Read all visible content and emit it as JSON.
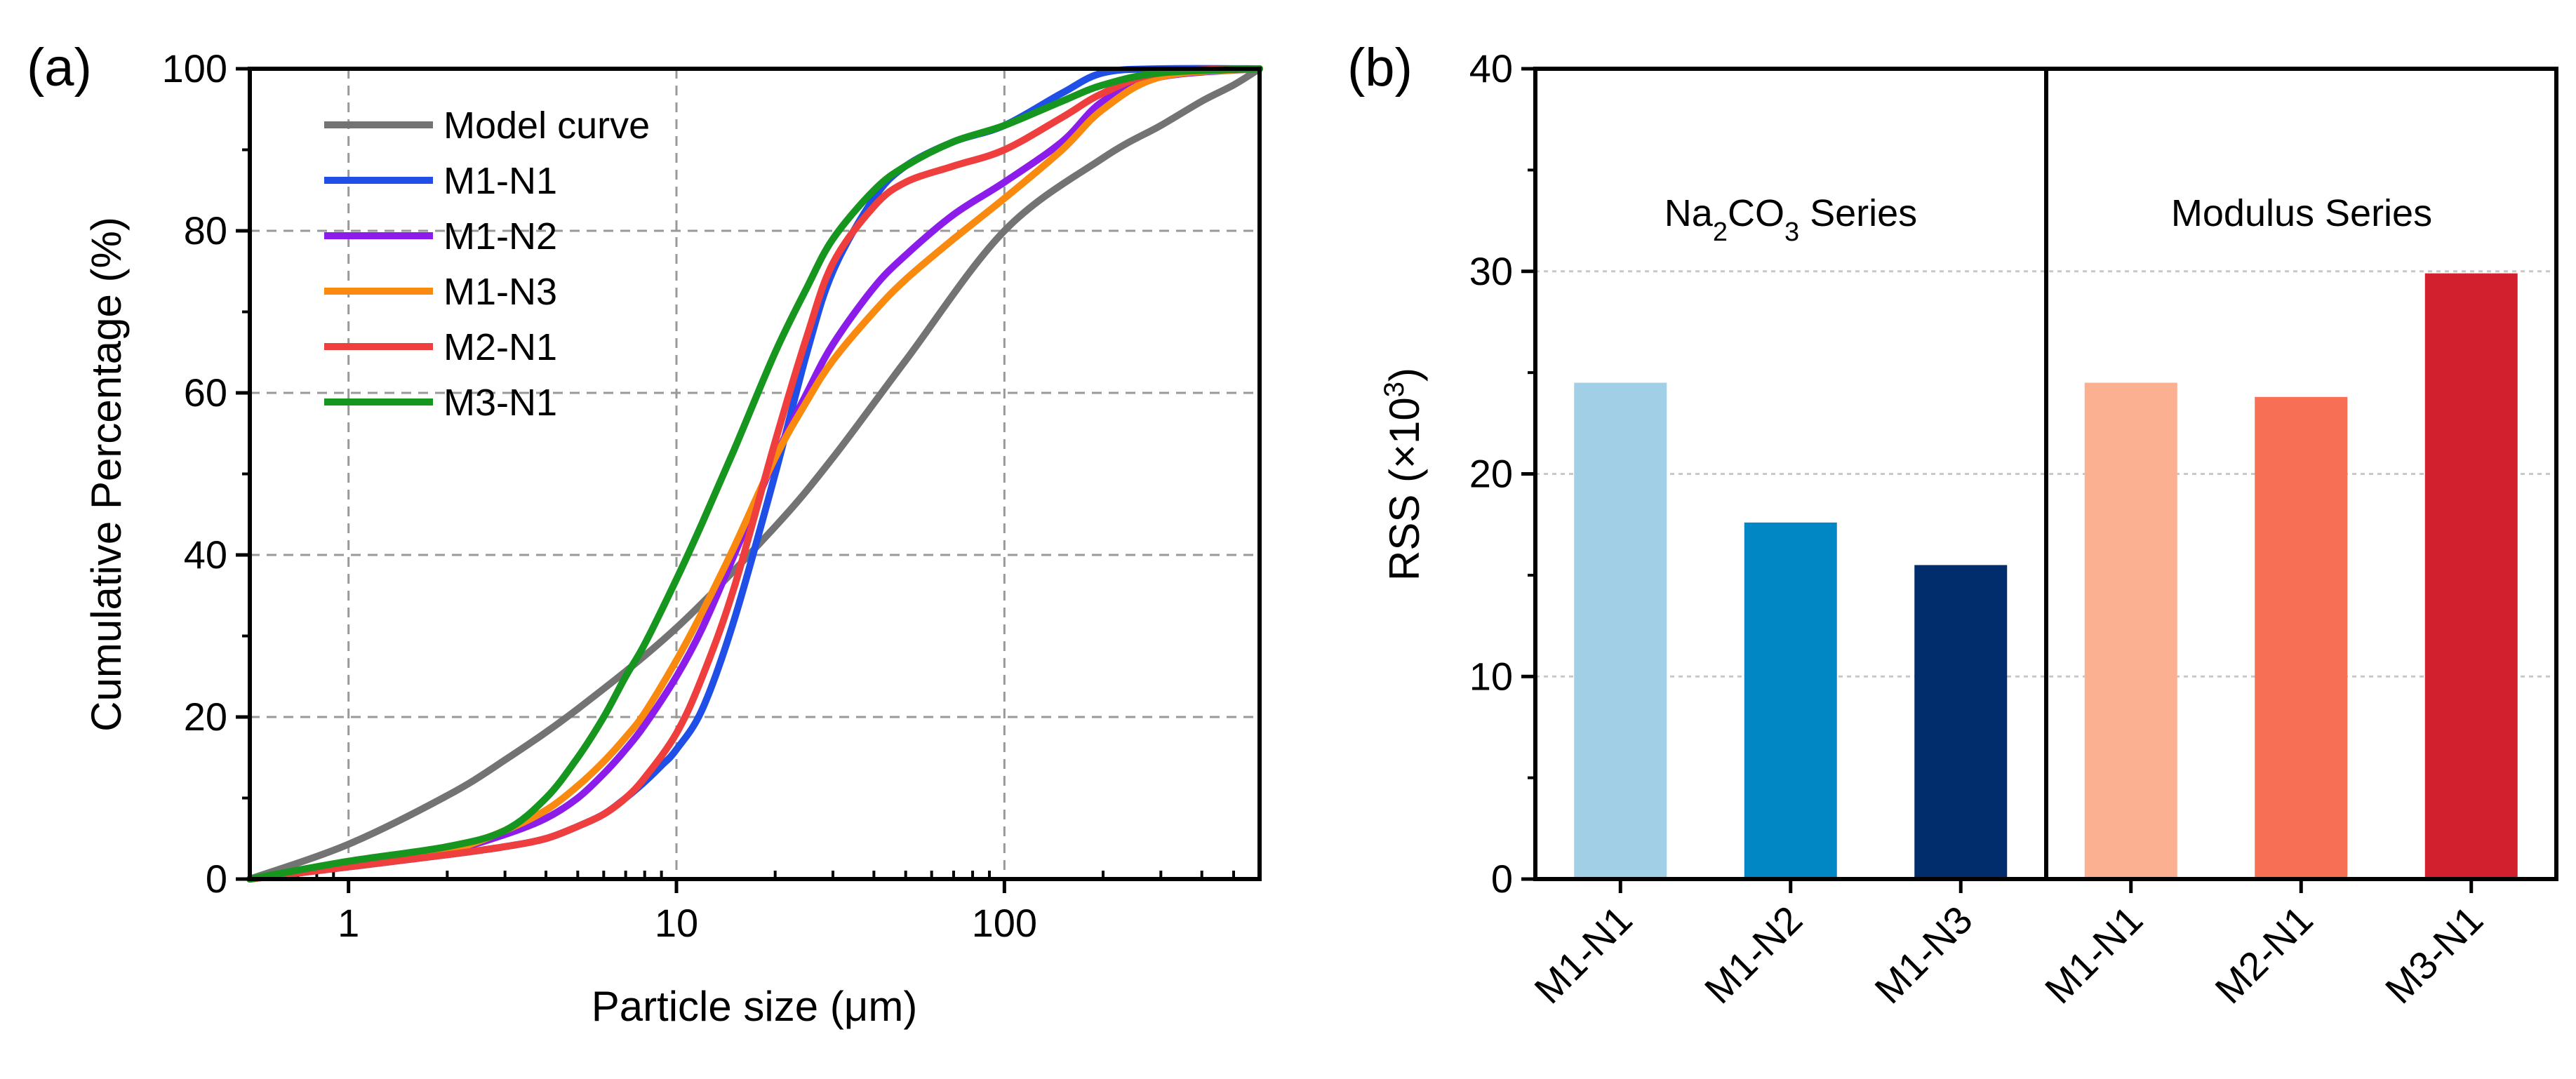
{
  "chart_data": [
    {
      "panel": "(a)",
      "type": "line",
      "xscale": "log",
      "xlabel": "Particle size (μm)",
      "ylabel": "Cumulative Percentage (%)",
      "xlim": [
        0.5,
        600
      ],
      "ylim": [
        0,
        100
      ],
      "xticks": [
        1,
        10,
        100
      ],
      "yticks": [
        0,
        20,
        40,
        60,
        80,
        100
      ],
      "grid": true,
      "legend": "top-left",
      "series": [
        {
          "name": "Model curve",
          "color": "#737373",
          "x": [
            0.5,
            1,
            2,
            3,
            5,
            10,
            20,
            30,
            50,
            100,
            200,
            300,
            400,
            500,
            600
          ],
          "y": [
            0,
            4.3,
            10.3,
            14.7,
            21,
            31,
            43.5,
            52,
            64,
            80,
            89,
            93,
            96,
            98,
            100
          ]
        },
        {
          "name": "M1-N1",
          "color": "#1f4fe6",
          "x": [
            0.5,
            1,
            2,
            3,
            4,
            5,
            6,
            7,
            8,
            9,
            10,
            12,
            15,
            20,
            25,
            30,
            40,
            50,
            70,
            100,
            150,
            200,
            300,
            600
          ],
          "y": [
            0,
            1.5,
            3,
            4,
            5,
            6.5,
            8,
            10,
            12,
            14,
            16,
            21,
            32,
            50,
            65,
            75,
            84,
            88,
            91,
            93,
            97,
            99.5,
            100,
            100
          ]
        },
        {
          "name": "M1-N2",
          "color": "#8b1cea",
          "x": [
            0.5,
            1,
            2,
            3,
            4,
            5,
            6,
            7,
            8,
            10,
            12,
            15,
            20,
            25,
            30,
            40,
            50,
            70,
            100,
            150,
            200,
            300,
            600
          ],
          "y": [
            0,
            1.7,
            3.5,
            5.5,
            7.5,
            10,
            13,
            16,
            19,
            25,
            31,
            40,
            52,
            60,
            66,
            73,
            77,
            82,
            86,
            91,
            96,
            99,
            100
          ]
        },
        {
          "name": "M1-N3",
          "color": "#f98a0f",
          "x": [
            0.5,
            1,
            2,
            3,
            4,
            5,
            6,
            7,
            8,
            10,
            12,
            15,
            20,
            25,
            30,
            40,
            50,
            70,
            100,
            150,
            200,
            300,
            600
          ],
          "y": [
            0,
            1.7,
            3.5,
            6,
            8.5,
            11.5,
            14.5,
            17.5,
            20.5,
            27,
            33,
            41,
            52,
            59,
            64,
            70,
            74,
            79,
            84,
            90,
            95,
            99,
            100
          ]
        },
        {
          "name": "M2-N1",
          "color": "#ef3e3e",
          "x": [
            0.5,
            1,
            2,
            3,
            4,
            5,
            6,
            7,
            8,
            10,
            12,
            15,
            20,
            25,
            30,
            40,
            50,
            70,
            100,
            150,
            200,
            300,
            600
          ],
          "y": [
            0,
            1.5,
            3,
            4,
            5,
            6.5,
            8,
            10,
            12.5,
            18,
            25,
            36,
            54,
            67,
            76,
            83,
            86,
            88,
            90,
            94,
            97,
            99.5,
            100
          ]
        },
        {
          "name": "M3-N1",
          "color": "#17961f",
          "x": [
            0.5,
            1,
            2,
            3,
            4,
            5,
            6,
            7,
            8,
            10,
            12,
            15,
            20,
            25,
            30,
            40,
            50,
            70,
            100,
            150,
            200,
            300,
            600
          ],
          "y": [
            0,
            2.2,
            4,
            6,
            10,
            15,
            20,
            25,
            29,
            37,
            44,
            53,
            65,
            73,
            79,
            85,
            88,
            91,
            93,
            96,
            98,
            99.5,
            100
          ]
        }
      ]
    },
    {
      "panel": "(b)",
      "type": "bar",
      "ylabel_prefix": "RSS (×10",
      "ylabel_exp": "3",
      "ylabel_suffix": ")",
      "ylim": [
        0,
        40
      ],
      "yticks": [
        0,
        10,
        20,
        30,
        40
      ],
      "grid": true,
      "categories": [
        "M1-N1",
        "M1-N2",
        "M1-N3",
        "M1-N1",
        "M2-N1",
        "M3-N1"
      ],
      "values": [
        24.5,
        17.6,
        15.5,
        24.5,
        23.8,
        29.9
      ],
      "colors": [
        "#a0cfe6",
        "#0087c4",
        "#012d6c",
        "#fbb092",
        "#f76f55",
        "#d2202e"
      ],
      "groups": [
        {
          "label_pre": "Na",
          "sub1": "2",
          "mid": "CO",
          "sub2": "3",
          "label_post": " Series"
        },
        {
          "label": "Modulus Series"
        }
      ]
    }
  ]
}
